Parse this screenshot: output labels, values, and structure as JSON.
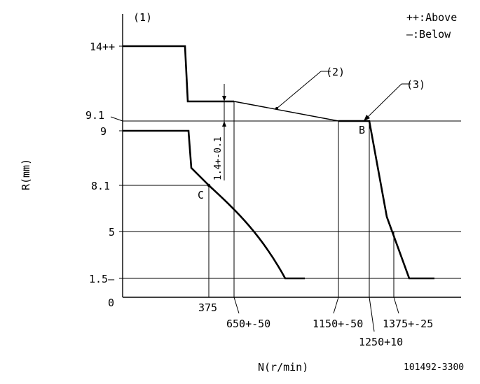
{
  "diagram": {
    "figure_marker": "(1)",
    "legend": {
      "above": "++:Above",
      "below": "—:Below"
    },
    "y_axis_title": "R(mm)",
    "x_axis_title": "N(r/min)",
    "drawing_number": "101492-3300",
    "y_labels": {
      "r14": "14++",
      "r9_1": "9.1",
      "r9": "9",
      "r8_1": "8.1",
      "r5": "5",
      "r1_5": "1.5—",
      "r0": "0"
    },
    "x_labels": {
      "n375": "375",
      "n650": "650+-50",
      "n1150": "1150+-50",
      "n1250": "1250+10",
      "n1375": "1375+-25"
    },
    "callouts": {
      "c2": "(2)",
      "c3": "(3)",
      "point_b": "B",
      "point_c": "C",
      "gap": "1.4+-0.1"
    }
  }
}
